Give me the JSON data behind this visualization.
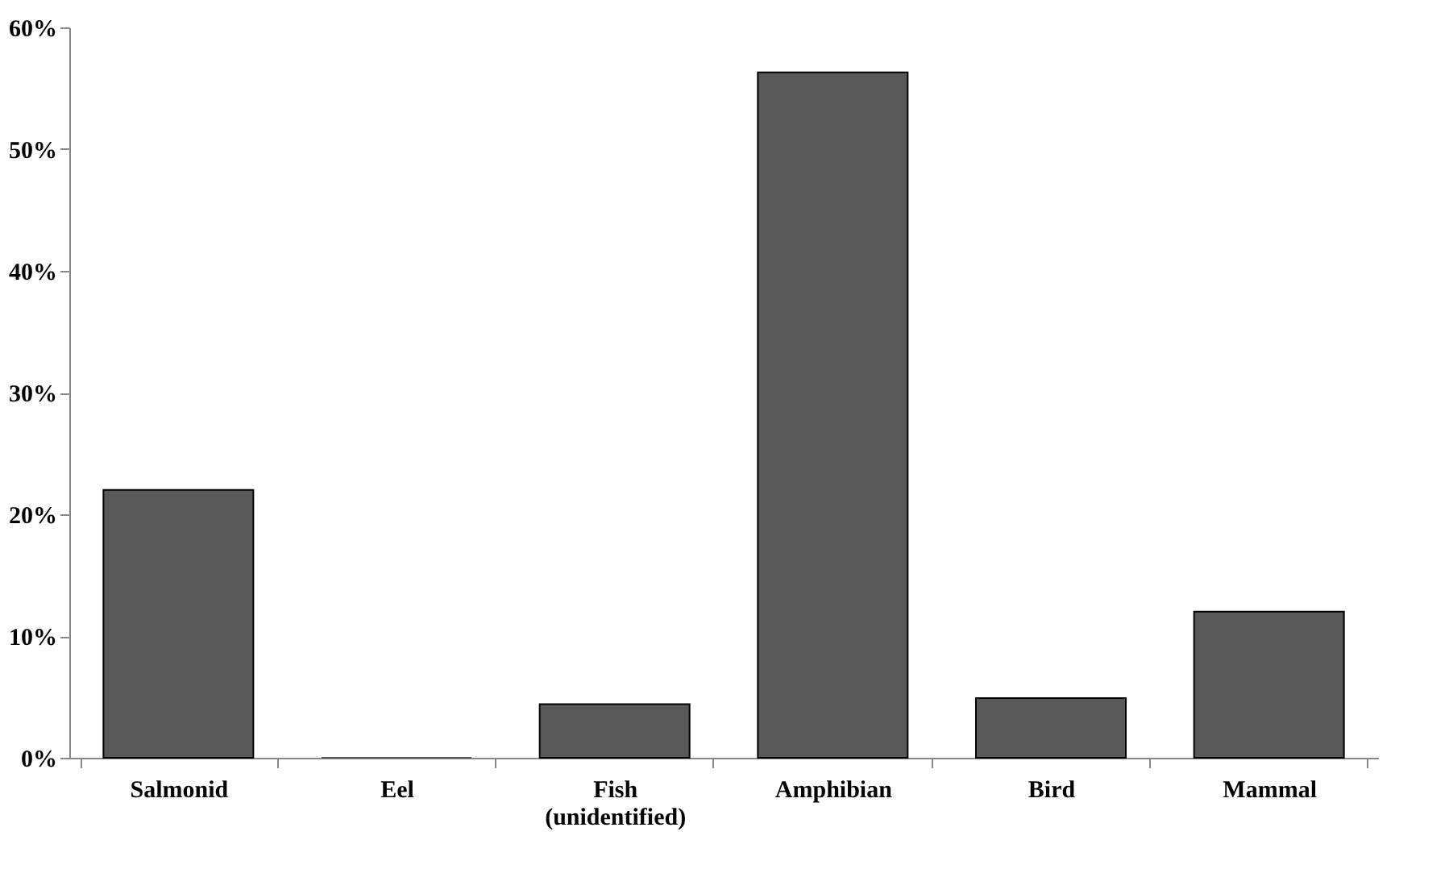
{
  "chart_data": {
    "type": "bar",
    "categories": [
      "Salmonid",
      "Eel",
      "Fish\n(unidentified)",
      "Amphibian",
      "Bird",
      "Mammal"
    ],
    "values": [
      22,
      0,
      4.4,
      56.3,
      4.9,
      12
    ],
    "color": "#595959",
    "ylim": [
      0,
      60
    ],
    "yticks": [
      {
        "value": 0,
        "label": "0%"
      },
      {
        "value": 10,
        "label": "10%"
      },
      {
        "value": 20,
        "label": "20%"
      },
      {
        "value": 30,
        "label": "30%"
      },
      {
        "value": 40,
        "label": "40%"
      },
      {
        "value": 50,
        "label": "50%"
      },
      {
        "value": 60,
        "label": "60%"
      }
    ],
    "grid": false
  }
}
